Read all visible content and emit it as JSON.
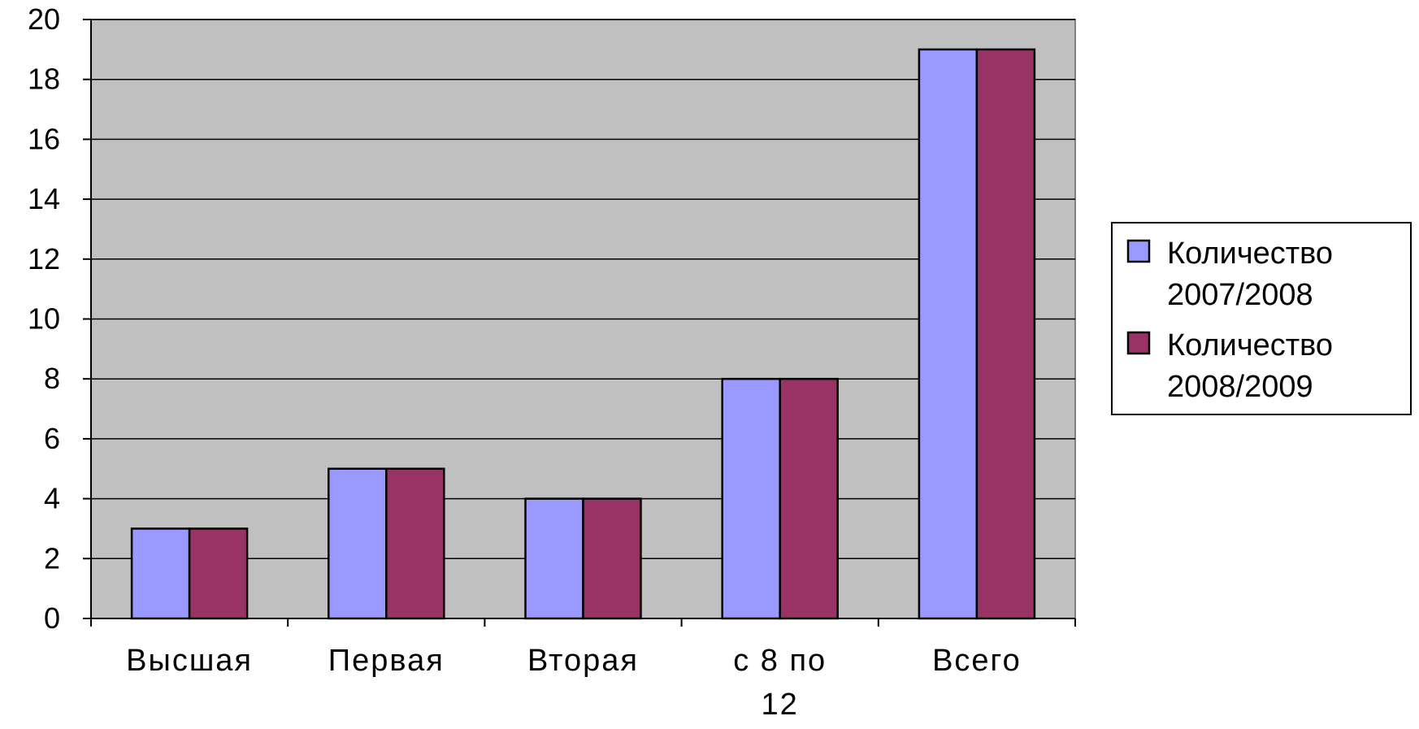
{
  "chart_data": {
    "type": "bar",
    "title": "",
    "xlabel": "",
    "ylabel": "",
    "categories": [
      [
        "Высшая"
      ],
      [
        "Первая"
      ],
      [
        "Вторая"
      ],
      [
        "с 8 по",
        "12"
      ],
      [
        "Всего"
      ]
    ],
    "series": [
      {
        "name": "Количество 2007/2008",
        "name_lines": [
          "Количество",
          "2007/2008"
        ],
        "values": [
          3,
          5,
          4,
          8,
          19
        ],
        "color": "#9999FF"
      },
      {
        "name": "Количество 2008/2009",
        "name_lines": [
          "Количество",
          "2008/2009"
        ],
        "values": [
          3,
          5,
          4,
          8,
          19
        ],
        "color": "#993366"
      }
    ],
    "ylim": [
      0,
      20
    ],
    "yticks": [
      0,
      2,
      4,
      6,
      8,
      10,
      12,
      14,
      16,
      18,
      20
    ],
    "grid": true,
    "plot_background": "#C0C0C0",
    "legend_position": "right"
  }
}
